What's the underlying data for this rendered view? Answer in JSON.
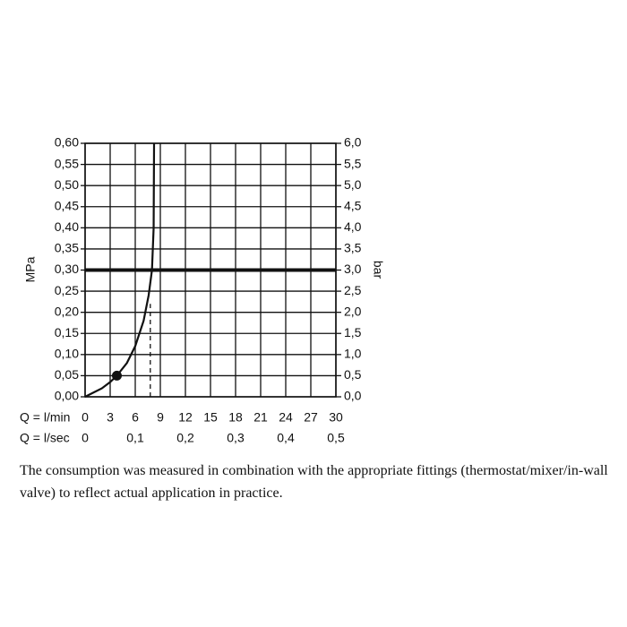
{
  "chart_data": {
    "type": "line",
    "ylabel": "MPa",
    "y2label": "bar",
    "xlabel": "Q = l/min",
    "x2label": "Q = l/sec",
    "xlim": [
      0,
      30
    ],
    "xticks": [
      0,
      3,
      6,
      9,
      12,
      15,
      18,
      21,
      24,
      27,
      30
    ],
    "x2lim": [
      0,
      0.5
    ],
    "x2ticks": [
      {
        "value": 0,
        "label": "0"
      },
      {
        "value": 0.1,
        "label": "0,1"
      },
      {
        "value": 0.2,
        "label": "0,2"
      },
      {
        "value": 0.3,
        "label": "0,3"
      },
      {
        "value": 0.4,
        "label": "0,4"
      },
      {
        "value": 0.5,
        "label": "0,5"
      }
    ],
    "ylim": [
      0,
      0.6
    ],
    "yticks": [
      {
        "value": 0,
        "label": "0,00"
      },
      {
        "value": 0.05,
        "label": "0,05"
      },
      {
        "value": 0.1,
        "label": "0,10"
      },
      {
        "value": 0.15,
        "label": "0,15"
      },
      {
        "value": 0.2,
        "label": "0,20"
      },
      {
        "value": 0.25,
        "label": "0,25"
      },
      {
        "value": 0.3,
        "label": "0,30"
      },
      {
        "value": 0.35,
        "label": "0,35"
      },
      {
        "value": 0.4,
        "label": "0,40"
      },
      {
        "value": 0.45,
        "label": "0,45"
      },
      {
        "value": 0.5,
        "label": "0,50"
      },
      {
        "value": 0.55,
        "label": "0,55"
      },
      {
        "value": 0.6,
        "label": "0,60"
      }
    ],
    "y2lim": [
      0,
      6
    ],
    "y2ticks": [
      {
        "value": 0,
        "label": "0,0"
      },
      {
        "value": 0.5,
        "label": "0,5"
      },
      {
        "value": 1,
        "label": "1,0"
      },
      {
        "value": 1.5,
        "label": "1,5"
      },
      {
        "value": 2,
        "label": "2,0"
      },
      {
        "value": 2.5,
        "label": "2,5"
      },
      {
        "value": 3,
        "label": "3,0"
      },
      {
        "value": 3.5,
        "label": "3,5"
      },
      {
        "value": 4,
        "label": "4,0"
      },
      {
        "value": 4.5,
        "label": "4,5"
      },
      {
        "value": 5,
        "label": "5,0"
      },
      {
        "value": 5.5,
        "label": "5,5"
      },
      {
        "value": 6,
        "label": "6,0"
      }
    ],
    "grid": true,
    "color": "#111111",
    "x": [
      0,
      1,
      2,
      3,
      3.8,
      5,
      6,
      7,
      7.6,
      8,
      8.2,
      8.25
    ],
    "values": [
      0,
      0.01,
      0.02,
      0.035,
      0.05,
      0.08,
      0.12,
      0.18,
      0.24,
      0.3,
      0.4,
      0.6
    ],
    "reference_line": {
      "value": 0.3
    },
    "dashed_line": {
      "x": 7.8,
      "y_end": 0.22
    },
    "marker": {
      "x": 3.8,
      "y": 0.05
    }
  },
  "caption": "The consumption was measured in combination with the appropriate fittings (thermostat/mixer/in-wall valve) to reflect actual application in practice."
}
